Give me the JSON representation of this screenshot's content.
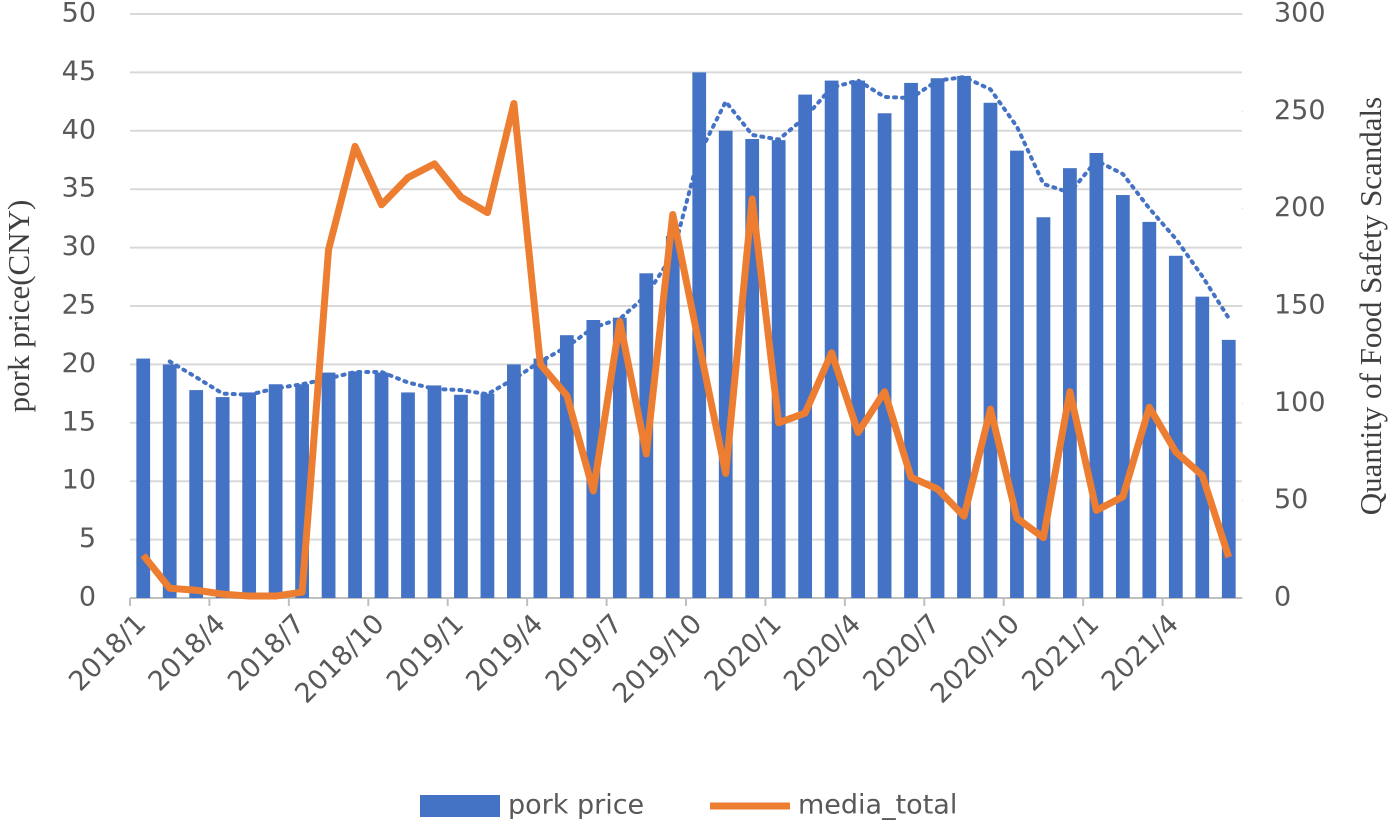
{
  "chart_data": {
    "type": "bar_line",
    "categories": [
      "2018/1",
      null,
      null,
      "2018/4",
      null,
      null,
      "2018/7",
      null,
      null,
      "2018/10",
      null,
      null,
      "2019/1",
      null,
      null,
      "2019/4",
      null,
      null,
      "2019/7",
      null,
      null,
      "2019/10",
      null,
      null,
      "2020/1",
      null,
      null,
      "2020/4",
      null,
      null,
      "2020/7",
      null,
      null,
      "2020/10",
      null,
      null,
      "2021/1",
      null,
      null,
      "2021/4",
      null,
      null
    ],
    "series": [
      {
        "name": "pork price",
        "type": "bar",
        "color": "#4472c4",
        "axis": "y",
        "values": [
          20.5,
          20.0,
          17.8,
          17.2,
          17.6,
          18.3,
          18.3,
          19.3,
          19.4,
          19.3,
          17.6,
          18.2,
          17.4,
          17.5,
          20.0,
          20.5,
          22.5,
          23.8,
          24.0,
          27.8,
          31.0,
          45.0,
          40.0,
          39.3,
          39.2,
          43.1,
          44.3,
          44.3,
          41.5,
          44.1,
          44.5,
          44.7,
          42.4,
          38.3,
          32.6,
          36.8,
          38.1,
          34.5,
          32.2,
          29.3,
          25.8,
          22.1
        ],
        "trendline": {
          "type": "moving_average",
          "period": 2
        }
      },
      {
        "name": "media_total",
        "type": "line",
        "color": "#ed7d31",
        "axis": "y2",
        "values": [
          22,
          5,
          4,
          2,
          1,
          1,
          3,
          179,
          232,
          202,
          216,
          223,
          206,
          198,
          254,
          120,
          104,
          55,
          142,
          74,
          197,
          130,
          64,
          205,
          90,
          95,
          126,
          85,
          106,
          62,
          56,
          42,
          97,
          41,
          31,
          106,
          45,
          52,
          98,
          75,
          63,
          21
        ]
      }
    ],
    "y_label": "pork price(CNY)",
    "y2_label": "Quantity of Food Safety Scandals",
    "ylim": [
      0,
      50
    ],
    "yticks": [
      0,
      5,
      10,
      15,
      20,
      25,
      30,
      35,
      40,
      45,
      50
    ],
    "y2lim": [
      0,
      300
    ],
    "y2ticks": [
      0,
      50,
      100,
      150,
      200,
      250,
      300
    ],
    "grid": true,
    "legend": "bottom"
  }
}
